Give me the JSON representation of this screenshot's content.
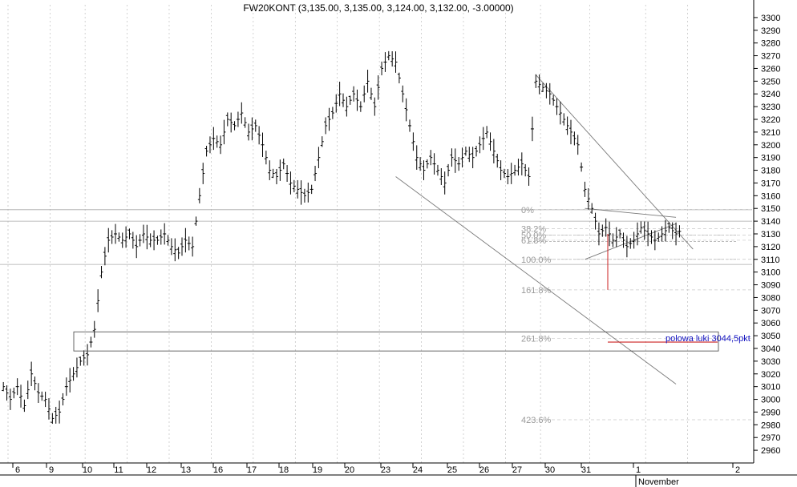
{
  "chart_data": {
    "type": "ohlc",
    "title": "FW20KONT (3,135.00, 3,135.00, 3,124.00, 3,132.00, -3.00000)",
    "xlabel": "",
    "ylabel": "",
    "ylim": [
      2950,
      3310
    ],
    "y_ticks": [
      2960,
      2970,
      2980,
      2990,
      3000,
      3010,
      3020,
      3030,
      3040,
      3050,
      3060,
      3070,
      3080,
      3090,
      3100,
      3110,
      3120,
      3130,
      3140,
      3150,
      3160,
      3170,
      3180,
      3190,
      3200,
      3210,
      3220,
      3230,
      3240,
      3250,
      3260,
      3270,
      3280,
      3290,
      3300
    ],
    "x_ticks": [
      "6",
      "9",
      "10",
      "11",
      "12",
      "13",
      "16",
      "17",
      "18",
      "19",
      "20",
      "23",
      "24",
      "25",
      "26",
      "27",
      "30",
      "31",
      "1",
      "2"
    ],
    "x_month_label": "November",
    "grid": "vertical dotted at day boundaries",
    "bar_count": 194,
    "series": [
      {
        "points": [
          {
            "bar": 0,
            "c": 3010
          },
          {
            "bar": 2,
            "c": 3000
          },
          {
            "bar": 4,
            "c": 3010
          },
          {
            "bar": 6,
            "c": 2995
          },
          {
            "bar": 8,
            "c": 3020
          },
          {
            "bar": 10,
            "c": 3005
          },
          {
            "bar": 12,
            "c": 3000
          },
          {
            "bar": 14,
            "c": 2985
          },
          {
            "bar": 16,
            "c": 2990
          },
          {
            "bar": 18,
            "c": 3010
          },
          {
            "bar": 20,
            "c": 3020
          },
          {
            "bar": 22,
            "c": 3030
          },
          {
            "bar": 24,
            "c": 3035
          },
          {
            "bar": 26,
            "c": 3055
          },
          {
            "bar": 28,
            "c": 3100
          },
          {
            "bar": 30,
            "c": 3125
          },
          {
            "bar": 32,
            "c": 3130
          },
          {
            "bar": 34,
            "c": 3125
          },
          {
            "bar": 36,
            "c": 3130
          },
          {
            "bar": 38,
            "c": 3120
          },
          {
            "bar": 40,
            "c": 3130
          },
          {
            "bar": 42,
            "c": 3125
          },
          {
            "bar": 44,
            "c": 3125
          },
          {
            "bar": 46,
            "c": 3130
          },
          {
            "bar": 48,
            "c": 3120
          },
          {
            "bar": 50,
            "c": 3115
          },
          {
            "bar": 52,
            "c": 3125
          },
          {
            "bar": 54,
            "c": 3120
          },
          {
            "bar": 56,
            "c": 3160
          },
          {
            "bar": 58,
            "c": 3195
          },
          {
            "bar": 60,
            "c": 3205
          },
          {
            "bar": 62,
            "c": 3200
          },
          {
            "bar": 64,
            "c": 3220
          },
          {
            "bar": 66,
            "c": 3215
          },
          {
            "bar": 68,
            "c": 3225
          },
          {
            "bar": 70,
            "c": 3210
          },
          {
            "bar": 72,
            "c": 3215
          },
          {
            "bar": 74,
            "c": 3200
          },
          {
            "bar": 76,
            "c": 3180
          },
          {
            "bar": 78,
            "c": 3175
          },
          {
            "bar": 80,
            "c": 3185
          },
          {
            "bar": 82,
            "c": 3170
          },
          {
            "bar": 84,
            "c": 3165
          },
          {
            "bar": 86,
            "c": 3160
          },
          {
            "bar": 88,
            "c": 3165
          },
          {
            "bar": 90,
            "c": 3190
          },
          {
            "bar": 92,
            "c": 3215
          },
          {
            "bar": 94,
            "c": 3225
          },
          {
            "bar": 96,
            "c": 3240
          },
          {
            "bar": 98,
            "c": 3230
          },
          {
            "bar": 100,
            "c": 3240
          },
          {
            "bar": 102,
            "c": 3230
          },
          {
            "bar": 104,
            "c": 3250
          },
          {
            "bar": 106,
            "c": 3230
          },
          {
            "bar": 108,
            "c": 3260
          },
          {
            "bar": 110,
            "c": 3270
          },
          {
            "bar": 112,
            "c": 3265
          },
          {
            "bar": 114,
            "c": 3240
          },
          {
            "bar": 116,
            "c": 3215
          },
          {
            "bar": 118,
            "c": 3190
          },
          {
            "bar": 120,
            "c": 3180
          },
          {
            "bar": 122,
            "c": 3190
          },
          {
            "bar": 124,
            "c": 3180
          },
          {
            "bar": 126,
            "c": 3170
          },
          {
            "bar": 128,
            "c": 3190
          },
          {
            "bar": 130,
            "c": 3185
          },
          {
            "bar": 132,
            "c": 3195
          },
          {
            "bar": 134,
            "c": 3190
          },
          {
            "bar": 136,
            "c": 3200
          },
          {
            "bar": 138,
            "c": 3210
          },
          {
            "bar": 140,
            "c": 3195
          },
          {
            "bar": 142,
            "c": 3180
          },
          {
            "bar": 144,
            "c": 3175
          },
          {
            "bar": 146,
            "c": 3180
          },
          {
            "bar": 148,
            "c": 3185
          },
          {
            "bar": 150,
            "c": 3175
          },
          {
            "bar": 152,
            "c": 3250
          },
          {
            "bar": 154,
            "c": 3245
          },
          {
            "bar": 156,
            "c": 3240
          },
          {
            "bar": 158,
            "c": 3230
          },
          {
            "bar": 160,
            "c": 3220
          },
          {
            "bar": 162,
            "c": 3210
          },
          {
            "bar": 164,
            "c": 3200
          },
          {
            "bar": 166,
            "c": 3165
          },
          {
            "bar": 168,
            "c": 3150
          },
          {
            "bar": 170,
            "c": 3130
          },
          {
            "bar": 172,
            "c": 3135
          },
          {
            "bar": 174,
            "c": 3125
          },
          {
            "bar": 176,
            "c": 3130
          },
          {
            "bar": 178,
            "c": 3120
          },
          {
            "bar": 180,
            "c": 3125
          },
          {
            "bar": 182,
            "c": 3135
          },
          {
            "bar": 184,
            "c": 3130
          },
          {
            "bar": 186,
            "c": 3125
          },
          {
            "bar": 188,
            "c": 3130
          },
          {
            "bar": 190,
            "c": 3135
          },
          {
            "bar": 192,
            "c": 3130
          },
          {
            "bar": 193,
            "c": 3132
          }
        ]
      }
    ],
    "last_bar": {
      "open": 3135.0,
      "high": 3135.0,
      "low": 3124.0,
      "close": 3132.0,
      "change": -3.0
    },
    "fibonacci_levels": [
      {
        "label": "0%",
        "value": 3149
      },
      {
        "label": "38.2%",
        "value": 3134
      },
      {
        "label": "50.0%",
        "value": 3129
      },
      {
        "label": "61.8%",
        "value": 3125
      },
      {
        "label": "100.0%",
        "value": 3110
      },
      {
        "label": "161.8%",
        "value": 3086
      },
      {
        "label": "261.8%",
        "value": 3048
      },
      {
        "label": "423.6%",
        "value": 2984
      }
    ],
    "horizontal_lines": [
      3149,
      3140,
      3129,
      3124,
      3110,
      3106
    ],
    "gap_box": {
      "top": 3053,
      "bottom": 3038
    },
    "annotation": {
      "text": "polowa luki 3044,5pkt",
      "value": 3045
    },
    "trend_lines": [
      {
        "x1": 152,
        "y1": 3255,
        "x2": 190,
        "y2": 3118
      },
      {
        "x1": 112,
        "y1": 3175,
        "x2": 192,
        "y2": 3012
      },
      {
        "x1": 166,
        "y1": 3150,
        "x2": 192,
        "y2": 3143
      },
      {
        "x1": 166,
        "y1": 3110,
        "x2": 192,
        "y2": 3138
      }
    ]
  }
}
